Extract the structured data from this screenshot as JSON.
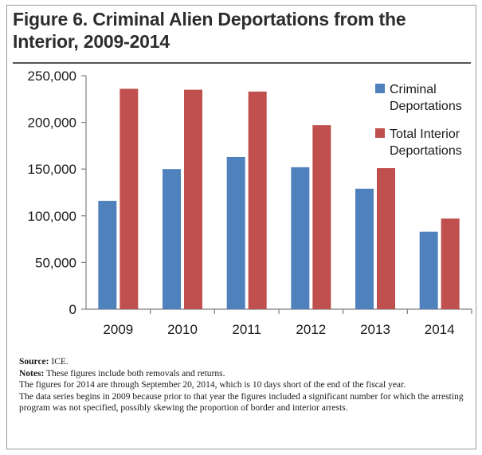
{
  "figure": {
    "title": "Figure 6. Criminal Alien Deportations from the Interior, 2009-2014"
  },
  "chart_data": {
    "type": "bar",
    "categories": [
      "2009",
      "2010",
      "2011",
      "2012",
      "2013",
      "2014"
    ],
    "series": [
      {
        "name": "Criminal Deportations",
        "color": "#4f81bd",
        "values": [
          116000,
          150000,
          163000,
          152000,
          129000,
          83000
        ]
      },
      {
        "name": "Total Interior Deportations",
        "color": "#c0504d",
        "values": [
          236000,
          235000,
          233000,
          197000,
          151000,
          97000
        ]
      }
    ],
    "ylim": [
      0,
      250000
    ],
    "yticks": [
      0,
      50000,
      100000,
      150000,
      200000,
      250000
    ],
    "ytick_labels": [
      "0",
      "50,000",
      "100,000",
      "150,000",
      "200,000",
      "250,000"
    ],
    "legend_position": "top-right",
    "grid": false
  },
  "source": {
    "label": "Source:",
    "text": " ICE."
  },
  "notes": {
    "label": "Notes:",
    "lines": [
      " These figures include both removals and returns.",
      "The figures for 2014 are through September 20, 2014, which is 10 days short of the end of the fiscal year.",
      "The data series begins in 2009 because prior to that year the figures included a significant number for which the arresting program was not specified, possibly skewing the proportion of border and interior arrests."
    ]
  }
}
